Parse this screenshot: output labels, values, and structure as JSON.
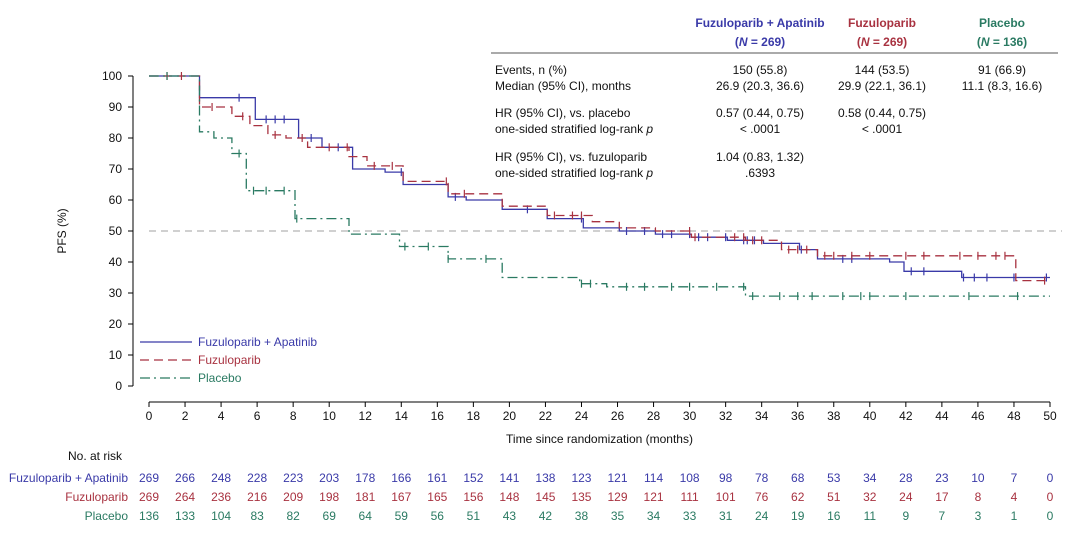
{
  "chart_data": {
    "type": "line",
    "subtype": "kaplan-meier",
    "ylabel": "PFS (%)",
    "xlabel": "Time since randomization (months)",
    "xlim": [
      0,
      50
    ],
    "ylim": [
      0,
      100
    ],
    "x_ticks": [
      0,
      2,
      4,
      6,
      8,
      10,
      12,
      14,
      16,
      18,
      20,
      22,
      24,
      26,
      28,
      30,
      32,
      34,
      36,
      38,
      40,
      42,
      44,
      46,
      48,
      50
    ],
    "y_ticks": [
      0,
      10,
      20,
      30,
      40,
      50,
      60,
      70,
      80,
      90,
      100
    ],
    "reference_line_y": 50,
    "legend_position": "bottom-left",
    "series": [
      {
        "name": "Fuzuloparib + Apatinib",
        "color": "#3a3aa8",
        "dash": "solid",
        "steps": [
          [
            0,
            100
          ],
          [
            2.7,
            100
          ],
          [
            2.8,
            93
          ],
          [
            5.8,
            93
          ],
          [
            5.9,
            86
          ],
          [
            8.2,
            86
          ],
          [
            8.3,
            80
          ],
          [
            9.5,
            80
          ],
          [
            9.6,
            77
          ],
          [
            11.2,
            77
          ],
          [
            11.3,
            70
          ],
          [
            13.0,
            70
          ],
          [
            13.1,
            69
          ],
          [
            14.0,
            69
          ],
          [
            14.1,
            65
          ],
          [
            16.5,
            65
          ],
          [
            16.6,
            61
          ],
          [
            17.5,
            61
          ],
          [
            17.6,
            60
          ],
          [
            19.5,
            60
          ],
          [
            19.6,
            57
          ],
          [
            22.0,
            57
          ],
          [
            22.1,
            54
          ],
          [
            24.0,
            54
          ],
          [
            24.1,
            51
          ],
          [
            26.0,
            51
          ],
          [
            26.1,
            50
          ],
          [
            28.0,
            50
          ],
          [
            28.1,
            49
          ],
          [
            30.0,
            49
          ],
          [
            30.1,
            48
          ],
          [
            32.0,
            48
          ],
          [
            32.1,
            47
          ],
          [
            34.0,
            47
          ],
          [
            34.1,
            46
          ],
          [
            36.0,
            46
          ],
          [
            36.1,
            44
          ],
          [
            37.0,
            44
          ],
          [
            37.1,
            41
          ],
          [
            41.0,
            41
          ],
          [
            41.1,
            40
          ],
          [
            41.8,
            40
          ],
          [
            41.9,
            37
          ],
          [
            45.0,
            37
          ],
          [
            45.1,
            35
          ],
          [
            50,
            35
          ]
        ],
        "censor_x": [
          5,
          6.5,
          7,
          7.5,
          9,
          10.5,
          14,
          17,
          21,
          24,
          26.5,
          27.5,
          28.5,
          29,
          30,
          30.5,
          31,
          32,
          33,
          33.2,
          33.6,
          36.2,
          38.5,
          39,
          42.3,
          43,
          45.2,
          45.8,
          46.5,
          48,
          49.8
        ],
        "at_risk": [
          269,
          266,
          248,
          228,
          223,
          203,
          178,
          166,
          161,
          152,
          141,
          138,
          123,
          121,
          114,
          108,
          98,
          78,
          68,
          53,
          34,
          28,
          23,
          10,
          7,
          0
        ]
      },
      {
        "name": "Fuzuloparib",
        "color": "#a83240",
        "dash": "dashed",
        "steps": [
          [
            0,
            100
          ],
          [
            2.7,
            100
          ],
          [
            2.8,
            90
          ],
          [
            4.5,
            90
          ],
          [
            4.6,
            87
          ],
          [
            5.5,
            87
          ],
          [
            5.6,
            84
          ],
          [
            6.5,
            84
          ],
          [
            6.6,
            81
          ],
          [
            7.5,
            81
          ],
          [
            7.6,
            80
          ],
          [
            8.7,
            80
          ],
          [
            8.8,
            77
          ],
          [
            11.0,
            77
          ],
          [
            11.1,
            74
          ],
          [
            12.0,
            74
          ],
          [
            12.1,
            71
          ],
          [
            14.0,
            71
          ],
          [
            14.1,
            66
          ],
          [
            16.5,
            66
          ],
          [
            16.6,
            62
          ],
          [
            19.5,
            62
          ],
          [
            19.6,
            58
          ],
          [
            22.0,
            58
          ],
          [
            22.1,
            55
          ],
          [
            24.5,
            55
          ],
          [
            24.6,
            53
          ],
          [
            26.0,
            53
          ],
          [
            26.1,
            51
          ],
          [
            28.0,
            51
          ],
          [
            28.1,
            50
          ],
          [
            30.0,
            50
          ],
          [
            30.1,
            48
          ],
          [
            33.0,
            48
          ],
          [
            33.1,
            47
          ],
          [
            35.0,
            47
          ],
          [
            35.1,
            44
          ],
          [
            37.0,
            44
          ],
          [
            37.1,
            42
          ],
          [
            48.0,
            42
          ],
          [
            48.1,
            34
          ],
          [
            50,
            34
          ]
        ],
        "censor_x": [
          1,
          1.8,
          3.5,
          5.2,
          7,
          8.5,
          10,
          11,
          12.5,
          13.5,
          16.5,
          17.5,
          22.5,
          23.5,
          24,
          30,
          30.3,
          32.5,
          33,
          33.5,
          34,
          35.5,
          36,
          36.5,
          37.5,
          38,
          39,
          40,
          42,
          43,
          45,
          46,
          47,
          47.5,
          49.7
        ],
        "at_risk": [
          269,
          264,
          236,
          216,
          209,
          198,
          181,
          167,
          165,
          156,
          148,
          145,
          135,
          129,
          121,
          111,
          101,
          76,
          62,
          51,
          32,
          24,
          17,
          8,
          4,
          0
        ]
      },
      {
        "name": "Placebo",
        "color": "#2a7a62",
        "dash": "dashdot",
        "steps": [
          [
            0,
            100
          ],
          [
            2.7,
            100
          ],
          [
            2.8,
            82
          ],
          [
            3.5,
            82
          ],
          [
            3.6,
            80
          ],
          [
            4.5,
            80
          ],
          [
            4.6,
            75
          ],
          [
            5.3,
            75
          ],
          [
            5.4,
            63
          ],
          [
            8.0,
            63
          ],
          [
            8.1,
            54
          ],
          [
            11.0,
            54
          ],
          [
            11.1,
            49
          ],
          [
            13.8,
            49
          ],
          [
            13.9,
            45
          ],
          [
            16.5,
            45
          ],
          [
            16.6,
            41
          ],
          [
            19.5,
            41
          ],
          [
            19.6,
            35
          ],
          [
            23.8,
            35
          ],
          [
            23.9,
            33
          ],
          [
            25.3,
            33
          ],
          [
            25.4,
            32
          ],
          [
            33.0,
            32
          ],
          [
            33.1,
            29
          ],
          [
            50,
            29
          ]
        ],
        "censor_x": [
          1,
          5,
          5.8,
          6.5,
          7.5,
          8.2,
          14.2,
          15.5,
          16.6,
          18.7,
          24,
          24.5,
          26.5,
          27.5,
          29,
          30,
          31.5,
          33,
          33.5,
          35,
          36,
          36.8,
          38.5,
          39.5,
          40,
          42,
          45.5,
          48.2
        ],
        "at_risk": [
          136,
          133,
          104,
          83,
          82,
          69,
          64,
          59,
          56,
          51,
          43,
          42,
          38,
          35,
          34,
          33,
          31,
          24,
          19,
          16,
          11,
          9,
          7,
          3,
          1,
          0
        ]
      }
    ],
    "at_risk_title": "No. at risk",
    "at_risk_x": [
      0,
      2,
      4,
      6,
      8,
      10,
      12,
      14,
      16,
      18,
      20,
      22,
      24,
      26,
      28,
      30,
      32,
      34,
      36,
      38,
      40,
      42,
      44,
      46,
      48,
      50
    ],
    "stats_table": {
      "columns": [
        {
          "name": "Fuzuloparib + Apatinib",
          "n": "269",
          "color": "#3a3aa8"
        },
        {
          "name": "Fuzuloparib",
          "n": "269",
          "color": "#a83240"
        },
        {
          "name": "Placebo",
          "n": "136",
          "color": "#2a7a62"
        }
      ],
      "n_prefix": "(",
      "n_letter": "N",
      "n_eq": " = ",
      "n_suffix": ")",
      "rows": [
        {
          "label": "Events, n (%)",
          "values": [
            "150 (55.8)",
            "144 (53.5)",
            "91 (66.9)"
          ]
        },
        {
          "label": "Median (95% CI), months",
          "values": [
            "26.9 (20.3, 36.6)",
            "29.9 (22.1, 36.1)",
            "11.1 (8.3, 16.6)"
          ]
        },
        {
          "label": "HR (95% CI), vs. placebo",
          "values": [
            "0.57 (0.44, 0.75)",
            "0.58 (0.44, 0.75)",
            ""
          ]
        },
        {
          "label": "one-sided stratified log-rank",
          "label_italic": "p",
          "values": [
            "< .0001",
            "< .0001",
            ""
          ]
        },
        {
          "label": "HR (95% CI), vs. fuzuloparib",
          "values": [
            "1.04 (0.83, 1.32)",
            "",
            ""
          ]
        },
        {
          "label": "one-sided stratified log-rank",
          "label_italic": "p",
          "values": [
            ".6393",
            "",
            ""
          ]
        }
      ]
    }
  }
}
